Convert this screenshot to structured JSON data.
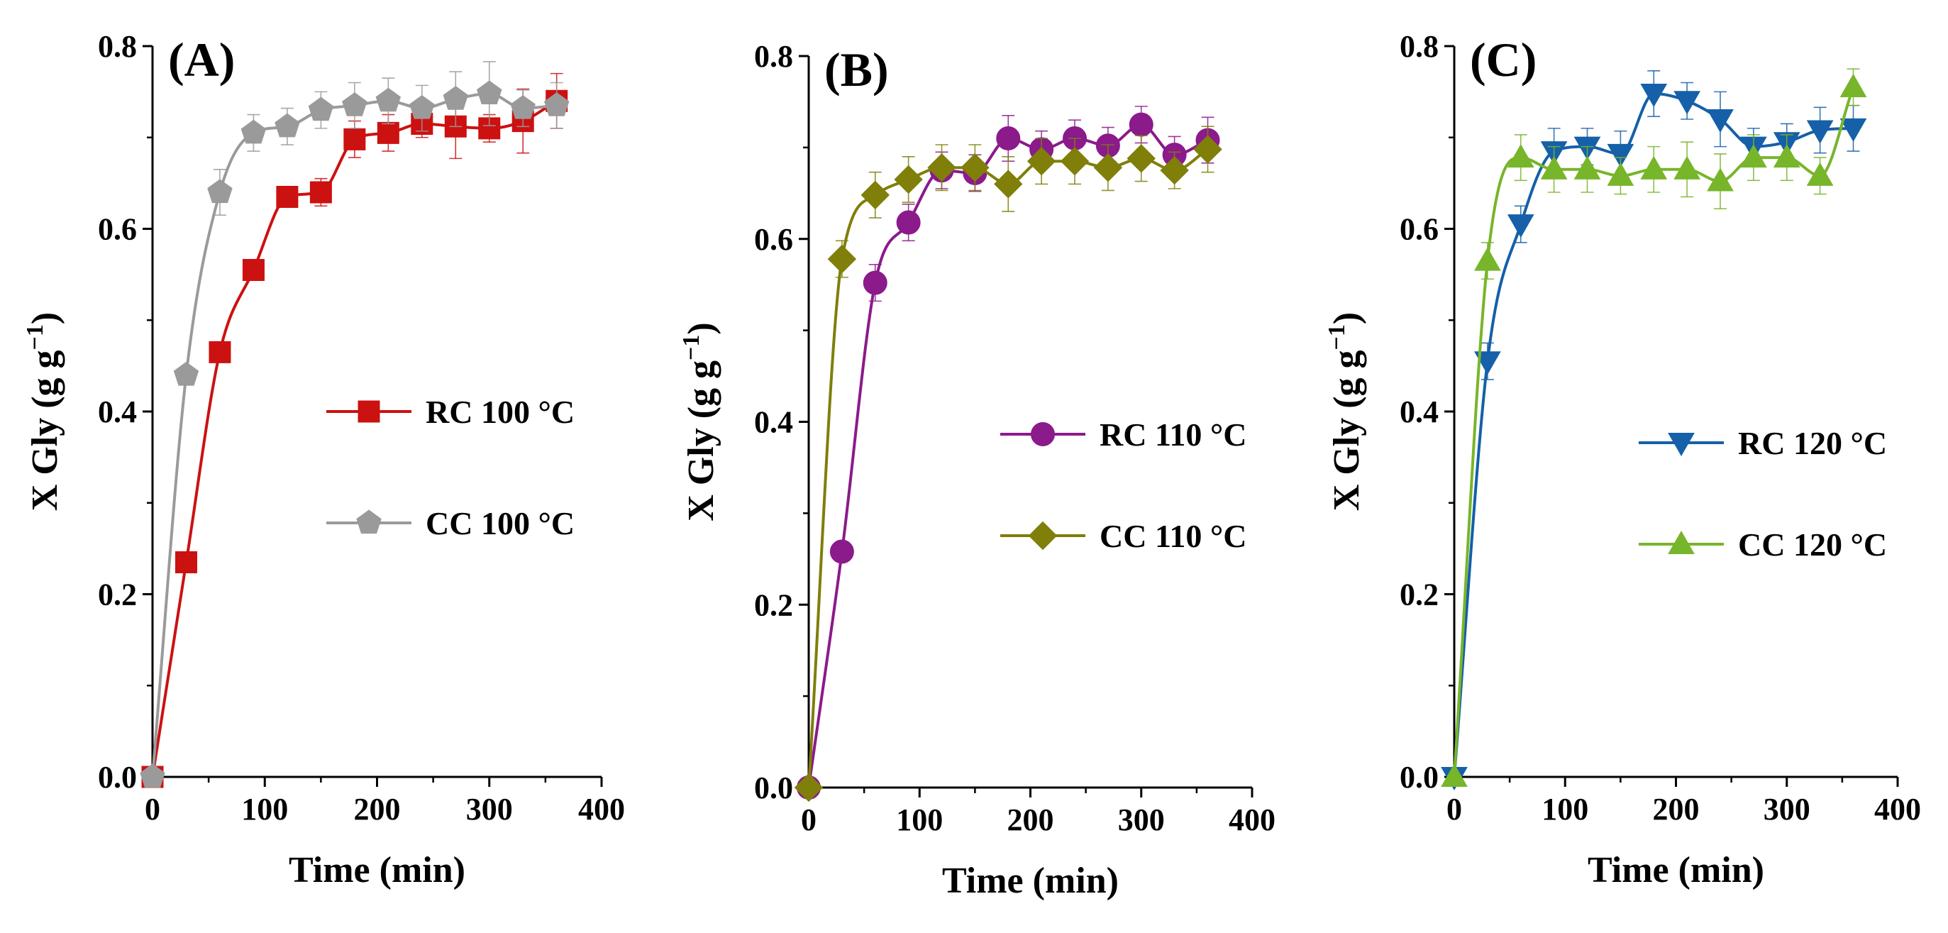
{
  "figure": {
    "background": "#ffffff"
  },
  "chart_data": [
    {
      "type": "line",
      "panel_label": "(A)",
      "title": "",
      "xlabel": "Time (min)",
      "ylabel_main": "X Gly (g g",
      "ylabel_sup": "−1",
      "ylabel_tail": ")",
      "xlim": [
        0,
        400
      ],
      "ylim": [
        0,
        0.8
      ],
      "xticks": [
        0,
        100,
        200,
        300,
        400
      ],
      "xtick_labels": [
        "0",
        "100",
        "200",
        "300",
        "400"
      ],
      "yticks": [
        0,
        0.2,
        0.4,
        0.6,
        0.8
      ],
      "ytick_labels": [
        "0.0",
        "0.2",
        "0.4",
        "0.6",
        "0.8"
      ],
      "legend_position": "center-right",
      "x": [
        0,
        30,
        60,
        90,
        120,
        150,
        180,
        210,
        240,
        270,
        300,
        330,
        360
      ],
      "series": [
        {
          "name": "RC 100 °C",
          "color": "#cc1111",
          "marker": "square",
          "values": [
            0.0,
            0.235,
            0.465,
            0.555,
            0.635,
            0.64,
            0.698,
            0.705,
            0.715,
            0.712,
            0.71,
            0.718,
            0.74
          ],
          "errors": [
            0.0,
            0.0,
            0.0,
            0.0,
            0.01,
            0.015,
            0.02,
            0.02,
            0.015,
            0.035,
            0.015,
            0.035,
            0.03
          ]
        },
        {
          "name": "CC 100 °C",
          "color": "#9a9a9a",
          "marker": "pentagon",
          "values": [
            0.0,
            0.44,
            0.64,
            0.705,
            0.712,
            0.73,
            0.735,
            0.74,
            0.732,
            0.742,
            0.748,
            0.732,
            0.735
          ],
          "errors": [
            0.0,
            0.0,
            0.025,
            0.02,
            0.02,
            0.02,
            0.025,
            0.025,
            0.025,
            0.03,
            0.035,
            0.02,
            0.025
          ]
        }
      ]
    },
    {
      "type": "line",
      "panel_label": "(B)",
      "title": "",
      "xlabel": "Time (min)",
      "ylabel_main": "X Gly (g g",
      "ylabel_sup": "−1",
      "ylabel_tail": ")",
      "xlim": [
        0,
        400
      ],
      "ylim": [
        0,
        0.8
      ],
      "xticks": [
        0,
        100,
        200,
        300,
        400
      ],
      "xtick_labels": [
        "0",
        "100",
        "200",
        "300",
        "400"
      ],
      "yticks": [
        0,
        0.2,
        0.4,
        0.6,
        0.8
      ],
      "ytick_labels": [
        "0.0",
        "0.2",
        "0.4",
        "0.6",
        "0.8"
      ],
      "legend_position": "center-right",
      "x": [
        0,
        30,
        60,
        90,
        120,
        150,
        180,
        210,
        240,
        270,
        300,
        330,
        360
      ],
      "series": [
        {
          "name": "RC 110 °C",
          "color": "#8b1a8b",
          "marker": "circle",
          "values": [
            0.0,
            0.258,
            0.552,
            0.618,
            0.675,
            0.672,
            0.71,
            0.698,
            0.71,
            0.702,
            0.725,
            0.692,
            0.708
          ],
          "errors": [
            0.0,
            0.0,
            0.02,
            0.02,
            0.02,
            0.02,
            0.025,
            0.02,
            0.02,
            0.02,
            0.02,
            0.02,
            0.025
          ]
        },
        {
          "name": "CC 110 °C",
          "color": "#7f7f0a",
          "marker": "diamond",
          "values": [
            0.0,
            0.578,
            0.648,
            0.665,
            0.678,
            0.678,
            0.66,
            0.685,
            0.685,
            0.678,
            0.688,
            0.675,
            0.698
          ],
          "errors": [
            0.0,
            0.02,
            0.025,
            0.025,
            0.025,
            0.025,
            0.03,
            0.025,
            0.025,
            0.025,
            0.025,
            0.02,
            0.025
          ]
        }
      ]
    },
    {
      "type": "line",
      "panel_label": "(C)",
      "title": "",
      "xlabel": "Time (min)",
      "ylabel_main": "X Gly (g g",
      "ylabel_sup": "−1",
      "ylabel_tail": ")",
      "xlim": [
        0,
        400
      ],
      "ylim": [
        0,
        0.8
      ],
      "xticks": [
        0,
        100,
        200,
        300,
        400
      ],
      "xtick_labels": [
        "0",
        "100",
        "200",
        "300",
        "400"
      ],
      "yticks": [
        0,
        0.2,
        0.4,
        0.6,
        0.8
      ],
      "ytick_labels": [
        "0.0",
        "0.2",
        "0.4",
        "0.6",
        "0.8"
      ],
      "legend_position": "center-right",
      "x": [
        0,
        30,
        60,
        90,
        120,
        150,
        180,
        210,
        240,
        270,
        300,
        330,
        360
      ],
      "series": [
        {
          "name": "RC 120 °C",
          "color": "#1560a8",
          "marker": "triangle-down",
          "values": [
            0.0,
            0.455,
            0.605,
            0.685,
            0.69,
            0.682,
            0.748,
            0.74,
            0.72,
            0.69,
            0.695,
            0.708,
            0.71
          ],
          "errors": [
            0.0,
            0.02,
            0.02,
            0.025,
            0.02,
            0.025,
            0.025,
            0.02,
            0.03,
            0.02,
            0.02,
            0.025,
            0.025
          ]
        },
        {
          "name": "CC 120 °C",
          "color": "#77b52a",
          "marker": "triangle-up",
          "values": [
            0.0,
            0.565,
            0.678,
            0.665,
            0.665,
            0.658,
            0.665,
            0.665,
            0.652,
            0.678,
            0.678,
            0.658,
            0.755
          ],
          "errors": [
            0.0,
            0.02,
            0.025,
            0.025,
            0.025,
            0.02,
            0.025,
            0.03,
            0.03,
            0.025,
            0.025,
            0.02,
            0.02
          ]
        }
      ]
    }
  ]
}
